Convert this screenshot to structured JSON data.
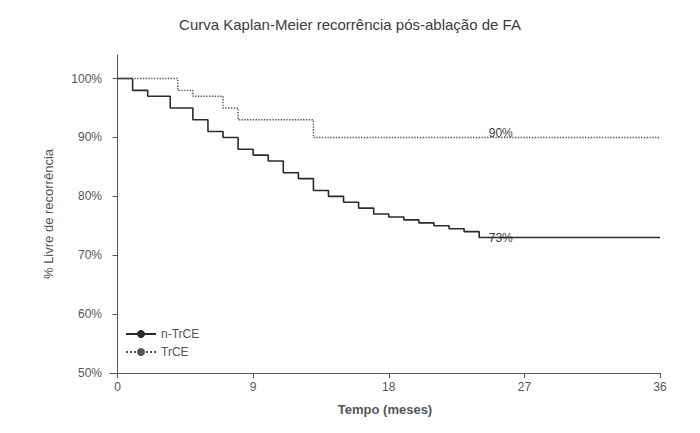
{
  "chart_data": {
    "type": "step",
    "title": "Curva Kaplan-Meier recorrência pós-ablação de FA",
    "xlabel": "Tempo (meses)",
    "ylabel": "% Livre de recorrência",
    "xlim": [
      -0.5,
      36
    ],
    "ylim": [
      50,
      104
    ],
    "xticks": [
      0,
      9,
      18,
      27,
      36
    ],
    "yticks": [
      {
        "value": 50,
        "label": "50%"
      },
      {
        "value": 60,
        "label": "60%"
      },
      {
        "value": 70,
        "label": "70%"
      },
      {
        "value": 80,
        "label": "80%"
      },
      {
        "value": 90,
        "label": "90%"
      },
      {
        "value": 100,
        "label": "100%"
      }
    ],
    "grid": false,
    "legend": "lower left",
    "series": [
      {
        "name": "n-TrCE",
        "color": "#2b2b2b",
        "line_style": "solid",
        "x": [
          0,
          1,
          2,
          3.5,
          5,
          6,
          7,
          8,
          9,
          10,
          11,
          12,
          13,
          14,
          15,
          16,
          17,
          18,
          19,
          20,
          21,
          22,
          23,
          24,
          36
        ],
        "values": [
          100,
          98,
          97,
          95,
          93,
          91,
          90,
          88,
          87,
          86,
          84,
          83,
          81,
          80,
          79,
          78,
          77,
          76.5,
          76,
          75.5,
          75,
          74.5,
          74,
          73,
          73
        ]
      },
      {
        "name": "TrCE",
        "color": "#555555",
        "line_style": "dotted",
        "x": [
          0,
          3,
          4,
          5,
          7,
          8,
          12,
          13,
          36
        ],
        "values": [
          100,
          100,
          98,
          97,
          95,
          93,
          93,
          90,
          90
        ]
      }
    ],
    "annotations": [
      {
        "text": "73%",
        "x": 24.5,
        "y": 73
      },
      {
        "text": "90%",
        "x": 24.5,
        "y": 90.8
      }
    ]
  }
}
